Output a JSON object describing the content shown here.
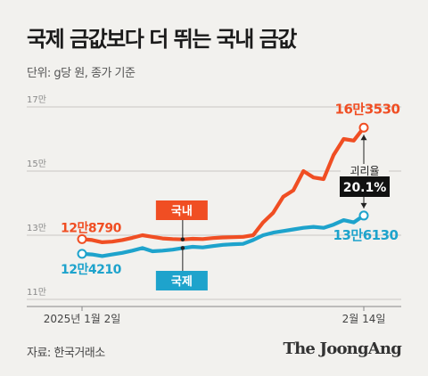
{
  "header": {
    "title": "국제 금값보다 더 뛰는 국내 금값",
    "subtitle": "단위: g당 원, 종가 기준"
  },
  "footer": {
    "source": "자료: 한국거래소",
    "logo": "The JoongAng"
  },
  "chart_data": {
    "type": "line",
    "xlabel": "",
    "ylabel": "",
    "x_tick_labels": [
      "2025년 1월 2일",
      "2월 14일"
    ],
    "ylim": [
      110000,
      170000
    ],
    "y_ticks": [
      110000,
      130000,
      150000,
      170000
    ],
    "y_tick_labels": [
      "11만",
      "13만",
      "15만",
      "17만"
    ],
    "grid": true,
    "series": [
      {
        "name": "국내",
        "color": "#f04e23",
        "values": [
          128790,
          128500,
          127800,
          128000,
          128500,
          129200,
          130000,
          129500,
          129000,
          128800,
          128700,
          128900,
          128800,
          129100,
          129300,
          129400,
          129500,
          130000,
          134000,
          137000,
          142000,
          144000,
          150000,
          148000,
          147500,
          155000,
          160000,
          159500,
          163530
        ],
        "start_label": "12만8790",
        "end_label": "16만3530"
      },
      {
        "name": "국제",
        "color": "#1ea3cc",
        "values": [
          124210,
          124000,
          123500,
          124000,
          124500,
          125200,
          126000,
          125000,
          125200,
          125500,
          126000,
          126400,
          126200,
          126600,
          127000,
          127200,
          127300,
          128500,
          130000,
          130800,
          131300,
          131800,
          132300,
          132600,
          132300,
          133300,
          134700,
          134000,
          136130
        ],
        "start_label": "12만4210",
        "end_label": "13만6130"
      }
    ],
    "annotations": {
      "gap_label": "괴리율",
      "gap_value": "20.1%"
    }
  }
}
